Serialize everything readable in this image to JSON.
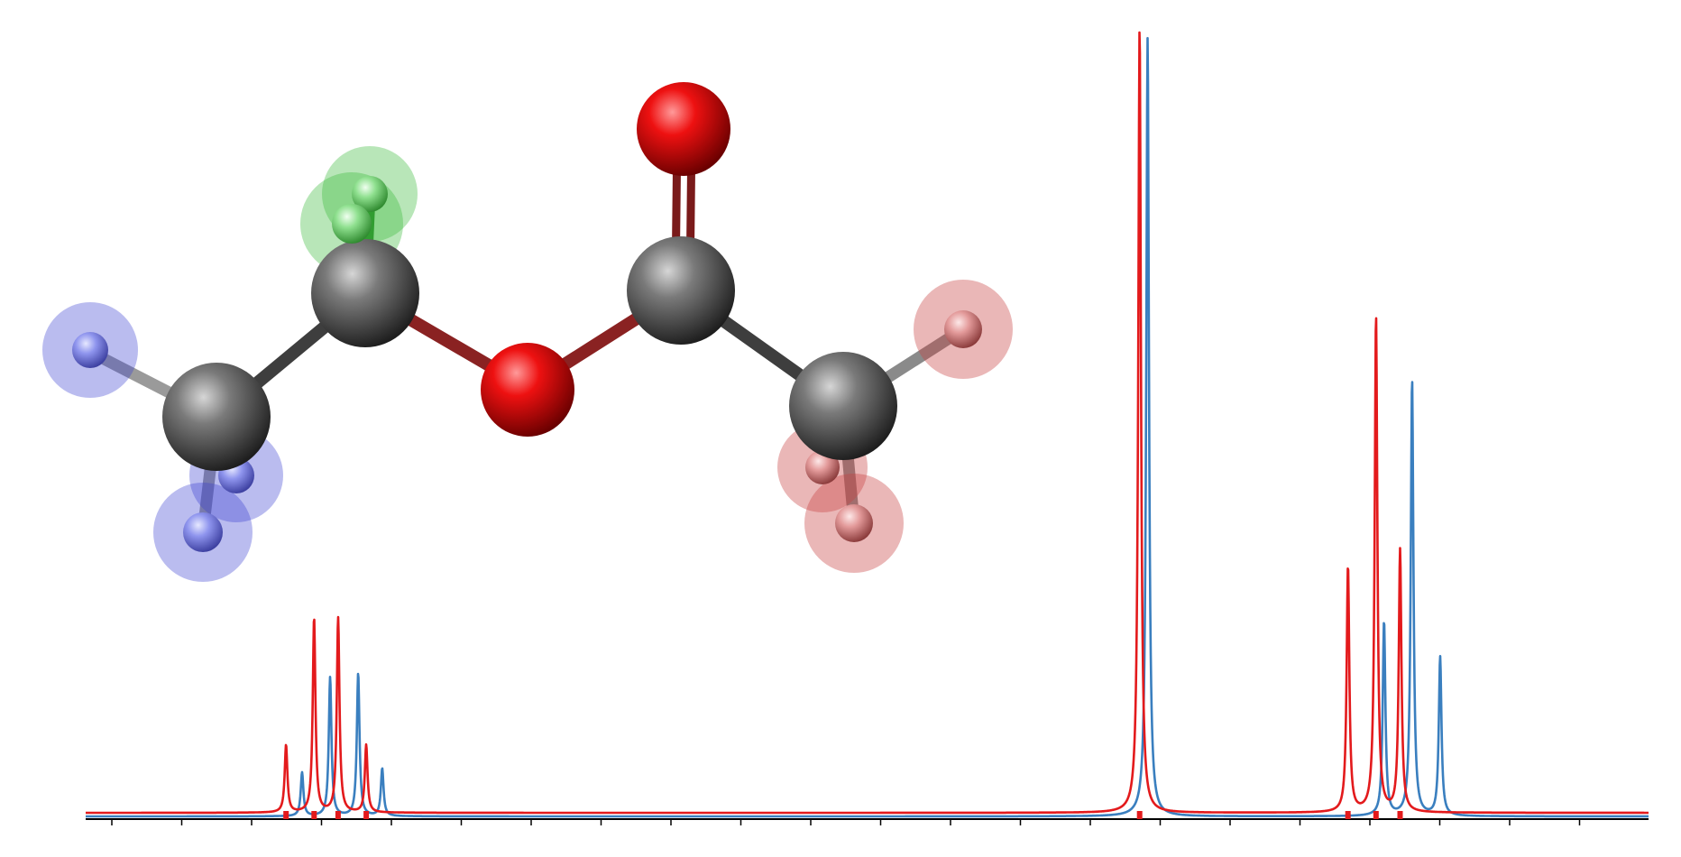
{
  "colors": {
    "series_red": "#e31a1c",
    "series_blue": "#3a7fbf",
    "carbon": "#5a5a5a",
    "oxygen": "#ee1111",
    "hydrogen_blue_group": "#8f95ee",
    "hydrogen_green_group": "#8fe08f",
    "hydrogen_red_group": "#e39a9a"
  },
  "molecule": {
    "name": "",
    "atoms": [
      {
        "element": "C",
        "role": "methyl-carbon-left"
      },
      {
        "element": "C",
        "role": "methylene-carbon"
      },
      {
        "element": "O",
        "role": "ester-oxygen"
      },
      {
        "element": "C",
        "role": "carbonyl-carbon"
      },
      {
        "element": "O",
        "role": "carbonyl-oxygen"
      },
      {
        "element": "C",
        "role": "methyl-carbon-right"
      },
      {
        "element": "H",
        "group": "blue"
      },
      {
        "element": "H",
        "group": "blue"
      },
      {
        "element": "H",
        "group": "blue"
      },
      {
        "element": "H",
        "group": "green"
      },
      {
        "element": "H",
        "group": "green"
      },
      {
        "element": "H",
        "group": "red"
      },
      {
        "element": "H",
        "group": "red"
      },
      {
        "element": "H",
        "group": "red"
      }
    ]
  },
  "chart_data": {
    "type": "line",
    "title": "",
    "xlabel": "",
    "ylabel": "",
    "x_axis_reversed": true,
    "xlim": [
      4.65,
      0.75
    ],
    "ylim": [
      0,
      1.0
    ],
    "tick_labels_shown": false,
    "minor_tick_count": 23,
    "grid": false,
    "legend": "none",
    "series": [
      {
        "color": "red",
        "peaks": [
          {
            "shift": 4.15,
            "height": 0.085
          },
          {
            "shift": 4.08,
            "height": 0.245
          },
          {
            "shift": 4.02,
            "height": 0.245
          },
          {
            "shift": 3.95,
            "height": 0.085
          },
          {
            "shift": 2.02,
            "height": 0.99
          },
          {
            "shift": 1.5,
            "height": 0.31
          },
          {
            "shift": 1.43,
            "height": 0.625
          },
          {
            "shift": 1.37,
            "height": 0.33
          }
        ]
      },
      {
        "color": "blue",
        "peaks": [
          {
            "shift": 4.11,
            "height": 0.055
          },
          {
            "shift": 4.04,
            "height": 0.175
          },
          {
            "shift": 3.97,
            "height": 0.18
          },
          {
            "shift": 3.91,
            "height": 0.06
          },
          {
            "shift": 2.0,
            "height": 0.98
          },
          {
            "shift": 1.41,
            "height": 0.245
          },
          {
            "shift": 1.34,
            "height": 0.55
          },
          {
            "shift": 1.27,
            "height": 0.2
          }
        ]
      }
    ],
    "rug_marks": {
      "color": "red",
      "shifts": [
        4.15,
        4.08,
        4.02,
        3.95,
        2.02,
        1.5,
        1.43,
        1.37
      ]
    }
  }
}
